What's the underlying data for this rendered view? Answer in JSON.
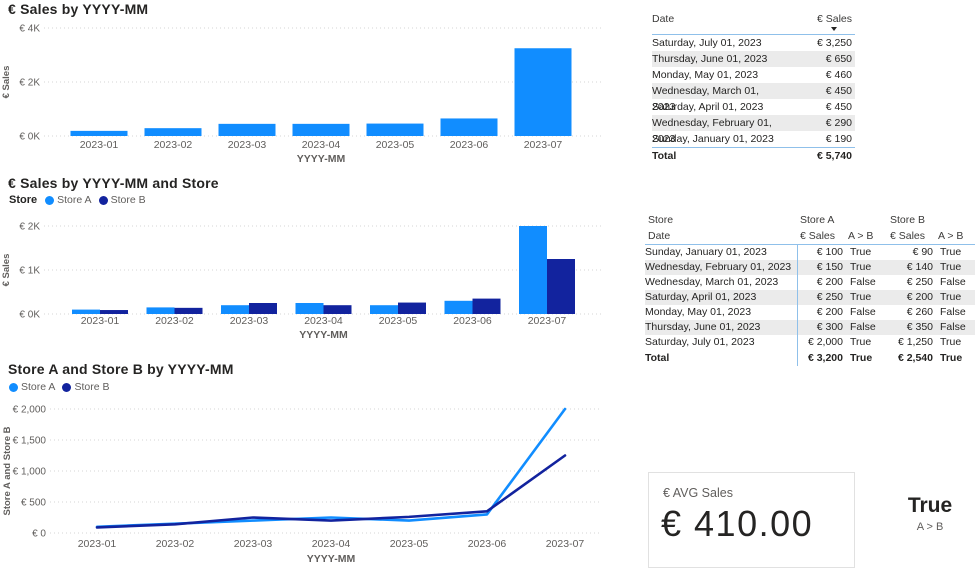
{
  "colors": {
    "store_a": "#118DFF",
    "store_b": "#12239E",
    "title_text": "#252423",
    "axis_text": "#605E5C",
    "gridline": "#D6D6D6",
    "table_rule_blue": "#8FC0EA",
    "alt_row": "#EBEBEB"
  },
  "chart_data": [
    {
      "type": "bar",
      "title": "€ Sales by YYYY-MM",
      "xlabel": "YYYY-MM",
      "ylabel": "€ Sales",
      "categories": [
        "2023-01",
        "2023-02",
        "2023-03",
        "2023-04",
        "2023-05",
        "2023-06",
        "2023-07"
      ],
      "values": [
        190,
        290,
        450,
        450,
        460,
        650,
        3250
      ],
      "color": "#118DFF",
      "ylim": [
        0,
        4000
      ],
      "yticks": [
        {
          "v": 0,
          "label": "€ 0K"
        },
        {
          "v": 2000,
          "label": "€ 2K"
        },
        {
          "v": 4000,
          "label": "€ 4K"
        }
      ],
      "grid": "dotted",
      "legend_position": "none"
    },
    {
      "type": "bar",
      "title": "€ Sales by YYYY-MM and Store",
      "xlabel": "YYYY-MM",
      "ylabel": "€ Sales",
      "legend_title": "Store",
      "legend_position": "top-left",
      "categories": [
        "2023-01",
        "2023-02",
        "2023-03",
        "2023-04",
        "2023-05",
        "2023-06",
        "2023-07"
      ],
      "series": [
        {
          "name": "Store A",
          "color": "#118DFF",
          "values": [
            100,
            150,
            200,
            250,
            200,
            300,
            2000
          ]
        },
        {
          "name": "Store B",
          "color": "#12239E",
          "values": [
            90,
            140,
            250,
            200,
            260,
            350,
            1250
          ]
        }
      ],
      "ylim": [
        0,
        2000
      ],
      "yticks": [
        {
          "v": 0,
          "label": "€ 0K"
        },
        {
          "v": 1000,
          "label": "€ 1K"
        },
        {
          "v": 2000,
          "label": "€ 2K"
        }
      ],
      "grid": "dotted"
    },
    {
      "type": "line",
      "title": "Store A and Store B by YYYY-MM",
      "xlabel": "YYYY-MM",
      "ylabel": "Store A and Store B",
      "legend_position": "top-left",
      "categories": [
        "2023-01",
        "2023-02",
        "2023-03",
        "2023-04",
        "2023-05",
        "2023-06",
        "2023-07"
      ],
      "series": [
        {
          "name": "Store A",
          "color": "#118DFF",
          "values": [
            100,
            150,
            200,
            250,
            200,
            300,
            2000
          ]
        },
        {
          "name": "Store B",
          "color": "#12239E",
          "values": [
            90,
            140,
            250,
            200,
            260,
            350,
            1250
          ]
        }
      ],
      "ylim": [
        0,
        2000
      ],
      "yticks": [
        {
          "v": 0,
          "label": "€ 0"
        },
        {
          "v": 500,
          "label": "€ 500"
        },
        {
          "v": 1000,
          "label": "€ 1,000"
        },
        {
          "v": 1500,
          "label": "€ 1,500"
        },
        {
          "v": 2000,
          "label": "€ 2,000"
        }
      ],
      "grid": "dotted"
    }
  ],
  "table1": {
    "headers": [
      "Date",
      "€ Sales"
    ],
    "sort_icon": "descending",
    "rows": [
      [
        "Saturday, July 01, 2023",
        "€ 3,250"
      ],
      [
        "Thursday, June 01, 2023",
        "€ 650"
      ],
      [
        "Monday, May 01, 2023",
        "€ 460"
      ],
      [
        "Wednesday, March 01, 2023",
        "€ 450"
      ],
      [
        "Saturday, April 01, 2023",
        "€ 450"
      ],
      [
        "Wednesday, February 01, 2023",
        "€ 290"
      ],
      [
        "Sunday, January 01, 2023",
        "€ 190"
      ]
    ],
    "total": [
      "Total",
      "€ 5,740"
    ]
  },
  "table2": {
    "group_headers": [
      "Store",
      "Store A",
      "Store B"
    ],
    "col_headers": [
      "Date",
      "€ Sales",
      "A > B",
      "€ Sales",
      "A > B"
    ],
    "rows": [
      [
        "Sunday, January 01, 2023",
        "€ 100",
        "True",
        "€ 90",
        "True"
      ],
      [
        "Wednesday, February 01, 2023",
        "€ 150",
        "True",
        "€ 140",
        "True"
      ],
      [
        "Wednesday, March 01, 2023",
        "€ 200",
        "False",
        "€ 250",
        "False"
      ],
      [
        "Saturday, April 01, 2023",
        "€ 250",
        "True",
        "€ 200",
        "True"
      ],
      [
        "Monday, May 01, 2023",
        "€ 200",
        "False",
        "€ 260",
        "False"
      ],
      [
        "Thursday, June 01, 2023",
        "€ 300",
        "False",
        "€ 350",
        "False"
      ],
      [
        "Saturday, July 01, 2023",
        "€ 2,000",
        "True",
        "€ 1,250",
        "True"
      ]
    ],
    "total": [
      "Total",
      "€ 3,200",
      "True",
      "€ 2,540",
      "True"
    ]
  },
  "cards": {
    "avg_sales": {
      "label": "€ AVG Sales",
      "value": "€ 410.00"
    },
    "a_gt_b": {
      "value": "True",
      "label": "A > B"
    }
  }
}
